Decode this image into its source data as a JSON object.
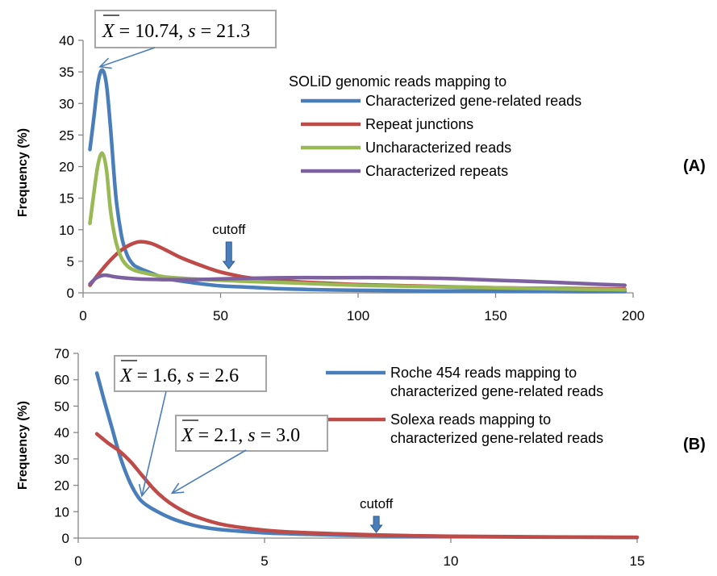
{
  "chart_data": [
    {
      "id": "A",
      "type": "line",
      "panel_label": "(A)",
      "ylabel": "Frequency (%)",
      "xlim": [
        0,
        200
      ],
      "ylim": [
        0,
        40
      ],
      "xticks": [
        0,
        50,
        100,
        150,
        200
      ],
      "yticks": [
        0,
        5,
        10,
        15,
        20,
        25,
        30,
        35,
        40
      ],
      "legend_title": "SOLiD genomic reads mapping to",
      "legend_position": "top-right",
      "series": [
        {
          "name": "Characterized gene-related reads",
          "color": "#4a7ebb",
          "points": [
            [
              2.5,
              22.7
            ],
            [
              4,
              28
            ],
            [
              5.5,
              33.5
            ],
            [
              7,
              35.3
            ],
            [
              8.5,
              33
            ],
            [
              10,
              26
            ],
            [
              12,
              15
            ],
            [
              14,
              9
            ],
            [
              16,
              6
            ],
            [
              18,
              4.6
            ],
            [
              20,
              4
            ],
            [
              25,
              3.1
            ],
            [
              30,
              2.3
            ],
            [
              40,
              1.6
            ],
            [
              50,
              1.1
            ],
            [
              60,
              0.9
            ],
            [
              75,
              0.6
            ],
            [
              100,
              0.4
            ],
            [
              125,
              0.3
            ],
            [
              150,
              0.3
            ],
            [
              175,
              0.2
            ],
            [
              197,
              0.2
            ]
          ]
        },
        {
          "name": "Repeat junctions",
          "color": "#be4b48",
          "points": [
            [
              2.5,
              1.2
            ],
            [
              6,
              3.2
            ],
            [
              10,
              5.2
            ],
            [
              14,
              6.8
            ],
            [
              18,
              7.8
            ],
            [
              21,
              8.1
            ],
            [
              25,
              7.8
            ],
            [
              30,
              6.8
            ],
            [
              35,
              5.7
            ],
            [
              40,
              4.8
            ],
            [
              45,
              4
            ],
            [
              50,
              3.3
            ],
            [
              55,
              2.8
            ],
            [
              60,
              2.4
            ],
            [
              70,
              2
            ],
            [
              80,
              1.7
            ],
            [
              90,
              1.5
            ],
            [
              100,
              1.3
            ],
            [
              120,
              1.1
            ],
            [
              150,
              0.8
            ],
            [
              175,
              0.7
            ],
            [
              197,
              0.6
            ]
          ]
        },
        {
          "name": "Uncharacterized reads",
          "color": "#98b954",
          "points": [
            [
              2.5,
              11
            ],
            [
              4,
              16
            ],
            [
              5.5,
              20.5
            ],
            [
              7,
              22.1
            ],
            [
              8.5,
              19.5
            ],
            [
              10,
              13
            ],
            [
              12,
              8
            ],
            [
              14,
              5.5
            ],
            [
              16,
              4.3
            ],
            [
              18,
              3.7
            ],
            [
              20,
              3.4
            ],
            [
              25,
              2.9
            ],
            [
              30,
              2.5
            ],
            [
              40,
              2.2
            ],
            [
              50,
              2
            ],
            [
              60,
              1.8
            ],
            [
              75,
              1.6
            ],
            [
              100,
              1.2
            ],
            [
              125,
              1
            ],
            [
              150,
              0.8
            ],
            [
              175,
              0.6
            ],
            [
              197,
              0.5
            ]
          ]
        },
        {
          "name": "Characterized repeats",
          "color": "#7d60a0",
          "points": [
            [
              2.5,
              1.4
            ],
            [
              5,
              2.4
            ],
            [
              8,
              2.8
            ],
            [
              12,
              2.5
            ],
            [
              20,
              2.2
            ],
            [
              30,
              2.1
            ],
            [
              40,
              2.1
            ],
            [
              50,
              2.2
            ],
            [
              60,
              2.3
            ],
            [
              75,
              2.4
            ],
            [
              90,
              2.4
            ],
            [
              110,
              2.4
            ],
            [
              130,
              2.3
            ],
            [
              150,
              2
            ],
            [
              170,
              1.7
            ],
            [
              185,
              1.4
            ],
            [
              197,
              1.2
            ]
          ]
        }
      ],
      "annotations": {
        "cutoff": {
          "label": "cutoff",
          "x": 53
        },
        "stat_box": {
          "xbar": "10.74",
          "s": "21.3",
          "target": [
            7,
            35.3
          ]
        }
      }
    },
    {
      "id": "B",
      "type": "line",
      "panel_label": "(B)",
      "ylabel": "Frequency (%)",
      "xlim": [
        0,
        15
      ],
      "ylim": [
        0,
        70
      ],
      "xticks": [
        0,
        5,
        10,
        15
      ],
      "yticks": [
        0,
        10,
        20,
        30,
        40,
        50,
        60,
        70
      ],
      "legend_position": "top-right",
      "series": [
        {
          "name": "Roche 454 reads mapping to\ncharacterized gene-related reads",
          "color": "#4a7ebb",
          "points": [
            [
              0.5,
              62.5
            ],
            [
              0.7,
              52
            ],
            [
              0.9,
              42
            ],
            [
              1.1,
              32
            ],
            [
              1.3,
              24
            ],
            [
              1.5,
              18
            ],
            [
              1.7,
              14
            ],
            [
              2,
              11
            ],
            [
              2.5,
              7.5
            ],
            [
              3,
              5.2
            ],
            [
              3.5,
              3.8
            ],
            [
              4,
              3
            ],
            [
              5,
              2
            ],
            [
              6,
              1.5
            ],
            [
              7,
              1.1
            ],
            [
              8,
              0.9
            ],
            [
              9,
              0.7
            ],
            [
              10,
              0.6
            ],
            [
              12,
              0.4
            ],
            [
              14,
              0.3
            ],
            [
              15,
              0.25
            ]
          ]
        },
        {
          "name": "Solexa reads mapping to\ncharacterized gene-related reads",
          "color": "#be4b48",
          "points": [
            [
              0.5,
              39.5
            ],
            [
              0.8,
              36
            ],
            [
              1.1,
              33
            ],
            [
              1.4,
              29
            ],
            [
              1.7,
              24
            ],
            [
              2,
              19
            ],
            [
              2.3,
              15
            ],
            [
              2.6,
              12
            ],
            [
              3,
              9
            ],
            [
              3.5,
              6.5
            ],
            [
              4,
              4.8
            ],
            [
              5,
              3
            ],
            [
              6,
              2.1
            ],
            [
              7,
              1.6
            ],
            [
              8,
              1.2
            ],
            [
              9,
              0.9
            ],
            [
              10,
              0.7
            ],
            [
              12,
              0.5
            ],
            [
              14,
              0.35
            ],
            [
              15,
              0.3
            ]
          ]
        }
      ],
      "annotations": {
        "cutoff": {
          "label": "cutoff",
          "x": 8
        },
        "stat_box_1": {
          "xbar": "1.6",
          "s": "2.6",
          "target": [
            1.6,
            16
          ]
        },
        "stat_box_2": {
          "xbar": "2.1",
          "s": "3.0",
          "target": [
            2.3,
            17
          ]
        }
      }
    }
  ]
}
